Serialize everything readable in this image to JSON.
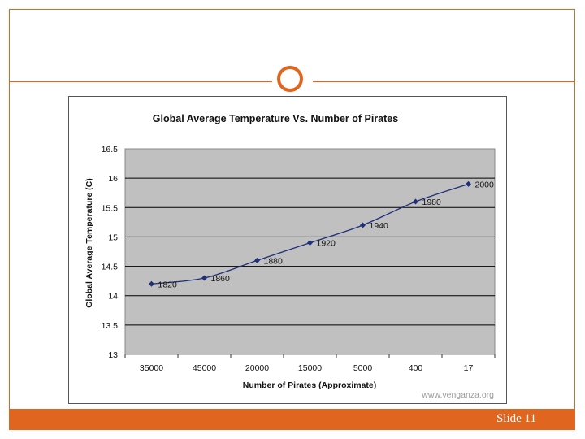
{
  "slide": {
    "number_label": "Slide 11",
    "accent_color": "#e0651f",
    "ornament_icon": "circle-ring-icon"
  },
  "chart_data": {
    "type": "line",
    "title": "Global Average Temperature Vs. Number of Pirates",
    "xlabel": "Number of Pirates (Approximate)",
    "ylabel": "Global Average Temperature (C)",
    "categories": [
      "35000",
      "45000",
      "20000",
      "15000",
      "5000",
      "400",
      "17"
    ],
    "series": [
      {
        "values": [
          14.2,
          14.3,
          14.6,
          14.9,
          15.2,
          15.6,
          15.9
        ],
        "color": "#1f2f7a"
      }
    ],
    "point_labels": [
      "1820",
      "1860",
      "1880",
      "1920",
      "1940",
      "1980",
      "2000"
    ],
    "ylim": [
      13,
      16.5
    ],
    "yticks": [
      "16.5",
      "16",
      "15.5",
      "15",
      "14.5",
      "14",
      "13.5",
      "13"
    ],
    "grid": true,
    "plot_background": "#c0c0c0",
    "watermark": "www.venganza.org"
  }
}
